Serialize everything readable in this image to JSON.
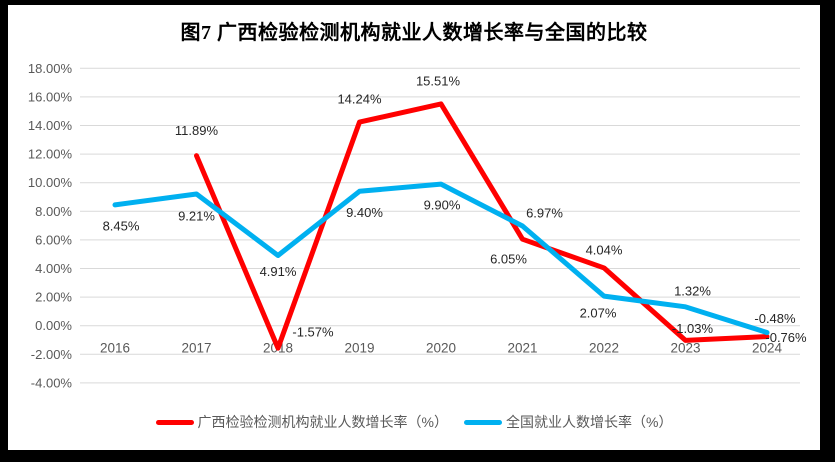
{
  "window": {
    "frame_color": "#000000",
    "canvas_color": "#ffffff"
  },
  "title": "图7 广西检验检测机构就业人数增长率与全国的比较",
  "chart_data": {
    "type": "line",
    "title": "图7 广西检验检测机构就业人数增长率与全国的比较",
    "categories": [
      "2016",
      "2017",
      "2018",
      "2019",
      "2020",
      "2021",
      "2022",
      "2023",
      "2024"
    ],
    "series": [
      {
        "name": "广西检验检测机构就业人数增长率（%）",
        "color": "#FF0000",
        "values": [
          null,
          11.89,
          -1.57,
          14.24,
          15.51,
          6.05,
          4.04,
          -1.03,
          -0.76
        ],
        "labels": [
          null,
          "11.89%",
          "-1.57%",
          "14.24%",
          "15.51%",
          "6.05%",
          "4.04%",
          "-1.03%",
          "-0.76%"
        ],
        "label_offsets": [
          null,
          [
            0,
            -25
          ],
          [
            35,
            -16
          ],
          [
            0,
            -23
          ],
          [
            -3,
            -23
          ],
          [
            -14,
            20
          ],
          [
            0,
            -18
          ],
          [
            7,
            -12
          ],
          [
            19,
            1
          ]
        ]
      },
      {
        "name": "全国就业人数增长率（%）",
        "color": "#00B0F0",
        "values": [
          8.45,
          9.21,
          4.91,
          9.4,
          9.9,
          6.97,
          2.07,
          1.32,
          -0.48
        ],
        "labels": [
          "8.45%",
          "9.21%",
          "4.91%",
          "9.40%",
          "9.90%",
          "6.97%",
          "2.07%",
          "1.32%",
          "-0.48%"
        ],
        "label_offsets": [
          [
            6,
            21
          ],
          [
            0,
            22
          ],
          [
            0,
            16
          ],
          [
            5,
            21
          ],
          [
            1,
            21
          ],
          [
            22,
            -13
          ],
          [
            -6,
            17
          ],
          [
            7,
            -16
          ],
          [
            8,
            -14
          ]
        ]
      }
    ],
    "y_axis": {
      "min": -4,
      "max": 18,
      "step": 2,
      "tick_labels": [
        "18.00%",
        "16.00%",
        "14.00%",
        "12.00%",
        "10.00%",
        "8.00%",
        "6.00%",
        "4.00%",
        "2.00%",
        "0.00%",
        "-2.00%",
        "-4.00%"
      ]
    },
    "xlabel": "",
    "ylabel": "",
    "grid": true,
    "legend_position": "bottom"
  },
  "colors": {
    "gridline": "#D9D9D9",
    "axis_text": "#595959",
    "data_label": "#262626",
    "legend_text": "#595959"
  }
}
